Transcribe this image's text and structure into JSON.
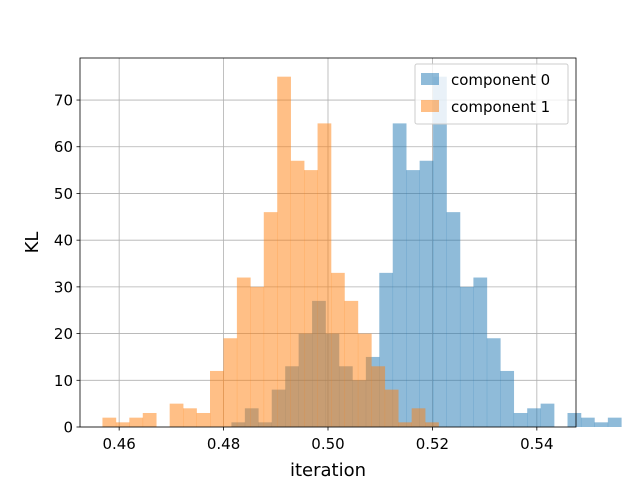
{
  "chart_data": {
    "type": "bar",
    "subtype": "histogram",
    "xlabel": "iteration",
    "ylabel": "KL",
    "xlim": [
      0.4525,
      0.5475
    ],
    "ylim": [
      0,
      79
    ],
    "xticks": [
      0.46,
      0.48,
      0.5,
      0.52,
      0.54
    ],
    "xtick_labels": [
      "0.46",
      "0.48",
      "0.50",
      "0.52",
      "0.54"
    ],
    "yticks": [
      0,
      10,
      20,
      30,
      40,
      50,
      60,
      70
    ],
    "ytick_labels": [
      "0",
      "10",
      "20",
      "30",
      "40",
      "50",
      "60",
      "70"
    ],
    "grid": true,
    "legend_position": "upper right",
    "series": [
      {
        "name": "component 0",
        "color": "#1f77b4",
        "alpha": 0.5,
        "bin_start": 0.4815,
        "bin_width": 0.002575,
        "counts": [
          1,
          4,
          1,
          8,
          13,
          20,
          27,
          20,
          13,
          10,
          15,
          33,
          65,
          55,
          57,
          75,
          46,
          30,
          32,
          19,
          12,
          3,
          4,
          5,
          0,
          3,
          2,
          1,
          2
        ]
      },
      {
        "name": "component 1",
        "color": "#ff7f0e",
        "alpha": 0.5,
        "bin_start": 0.4568,
        "bin_width": 0.002575,
        "counts": [
          2,
          1,
          2,
          3,
          0,
          5,
          4,
          3,
          12,
          19,
          32,
          30,
          46,
          75,
          57,
          55,
          65,
          33,
          27,
          20,
          13,
          8,
          1,
          4,
          1
        ]
      }
    ]
  }
}
